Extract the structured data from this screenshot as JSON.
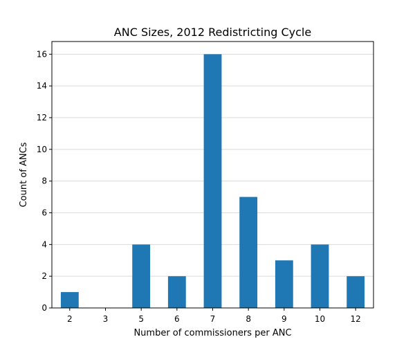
{
  "chart_data": {
    "type": "bar",
    "title": "ANC Sizes, 2012 Redistricting Cycle",
    "xlabel": "Number of commissioners per ANC",
    "ylabel": "Count of ANCs",
    "categories": [
      "2",
      "3",
      "5",
      "6",
      "7",
      "8",
      "9",
      "10",
      "12"
    ],
    "values": [
      1,
      0,
      4,
      2,
      16,
      7,
      3,
      4,
      2
    ],
    "ylim": [
      0,
      16.8
    ],
    "yticks": [
      0,
      2,
      4,
      6,
      8,
      10,
      12,
      14,
      16
    ],
    "grid": "y",
    "legend": "none",
    "bar_color": "#1f77b4",
    "grid_color": "#d9d9d9"
  }
}
